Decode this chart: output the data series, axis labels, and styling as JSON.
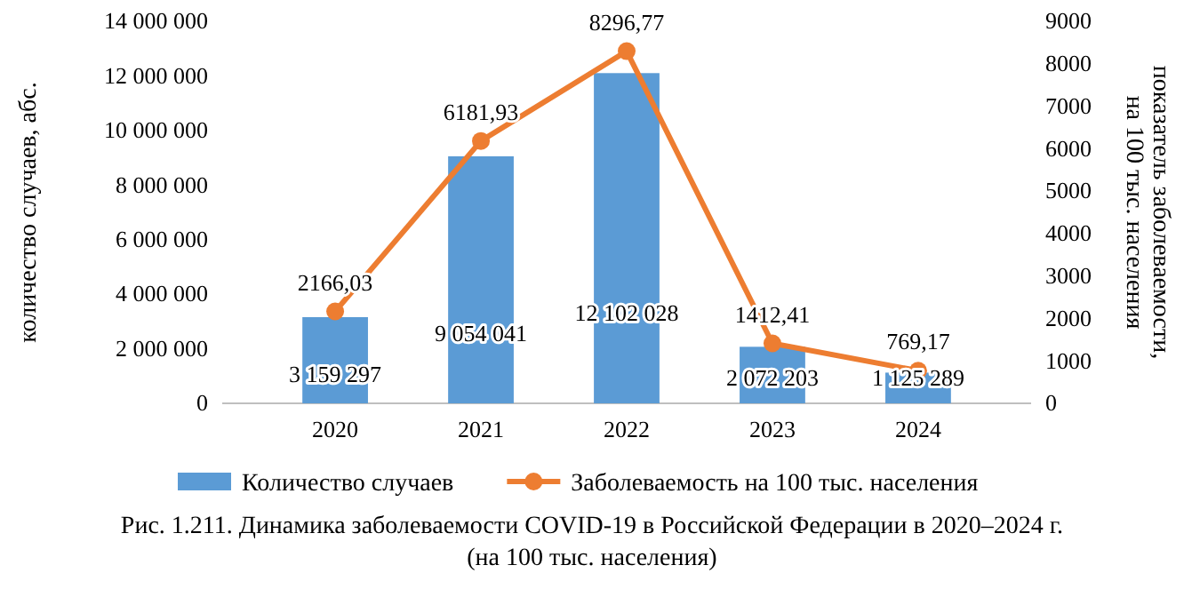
{
  "chart_data": {
    "type": "bar",
    "categories": [
      "2020",
      "2021",
      "2022",
      "2023",
      "2024"
    ],
    "series": [
      {
        "name": "Количество случаев",
        "color": "#5b9bd5",
        "values": [
          3159297,
          9054041,
          12102028,
          2072203,
          1125289
        ],
        "value_labels": [
          "3 159 297",
          "9 054 041",
          "12 102 028",
          "2 072 203",
          "1 125 289"
        ]
      },
      {
        "name": "Заболеваемость на 100 тыс. населения",
        "type": "line",
        "axis": "y2",
        "color": "#ed7d31",
        "marker": "circle",
        "values": [
          2166.03,
          6181.93,
          8296.77,
          1412.41,
          769.17
        ],
        "value_labels": [
          "2166,03",
          "6181,93",
          "8296,77",
          "1412,41",
          "769,17"
        ]
      }
    ],
    "ylabel": "количество случаев, абс.",
    "y2label": "показатель заболеваемости, на 100 тыс. населения",
    "ylim": [
      0,
      14000000
    ],
    "yticks": [
      {
        "value": 0,
        "label": "0"
      },
      {
        "value": 2000000,
        "label": "2 000 000"
      },
      {
        "value": 4000000,
        "label": "4 000 000"
      },
      {
        "value": 6000000,
        "label": "6 000 000"
      },
      {
        "value": 8000000,
        "label": "8 000 000"
      },
      {
        "value": 10000000,
        "label": "10 000 000"
      },
      {
        "value": 12000000,
        "label": "12 000 000"
      },
      {
        "value": 14000000,
        "label": "14 000 000"
      }
    ],
    "y2lim": [
      0,
      9000
    ],
    "y2ticks": [
      0,
      1000,
      2000,
      3000,
      4000,
      5000,
      6000,
      7000,
      8000,
      9000
    ],
    "grid": false,
    "legend": "bottom",
    "annotations": [
      "Рис. 1.211. Динамика заболеваемости COVID-19 в Российской Федерации в 2020–2024 г. (на 100 тыс. населения)"
    ]
  }
}
